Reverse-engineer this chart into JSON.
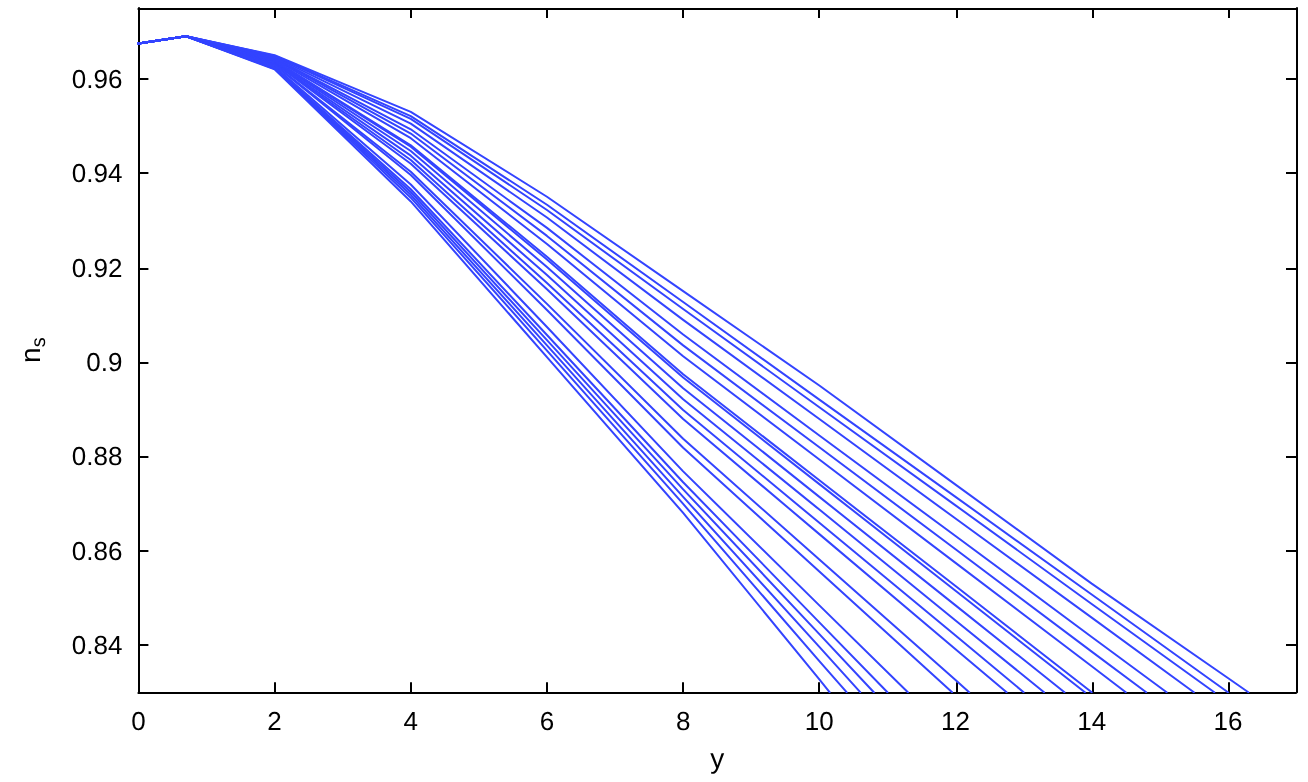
{
  "chart_data": {
    "type": "line",
    "xlabel": "y",
    "ylabel": "n$_{s}$",
    "xlim": [
      0,
      17
    ],
    "ylim": [
      0.83,
      0.975
    ],
    "xticks": [
      0,
      2,
      4,
      6,
      8,
      10,
      12,
      14,
      16
    ],
    "yticks": [
      0.84,
      0.86,
      0.88,
      0.9,
      0.92,
      0.94,
      0.96
    ],
    "marker": "none",
    "line_style": "solid",
    "series": [
      {
        "color": "#3344ff",
        "x": [
          0,
          0.7,
          2,
          4,
          6,
          8,
          10,
          10.15
        ],
        "values": [
          0.9675,
          0.969,
          0.962,
          0.934,
          0.901,
          0.868,
          0.8327,
          0.83
        ]
      },
      {
        "color": "#3344ff",
        "x": [
          0,
          0.7,
          2,
          4,
          6,
          8,
          10,
          10.4
        ],
        "values": [
          0.9675,
          0.969,
          0.9621,
          0.9348,
          0.9024,
          0.8699,
          0.8366,
          0.83
        ]
      },
      {
        "color": "#3344ff",
        "x": [
          0,
          0.7,
          2,
          4,
          6,
          8,
          10,
          10.6
        ],
        "values": [
          0.9675,
          0.969,
          0.9622,
          0.9354,
          0.9035,
          0.8714,
          0.8396,
          0.83
        ]
      },
      {
        "color": "#3344ff",
        "x": [
          0,
          0.7,
          2,
          4,
          6,
          8,
          10,
          10.8
        ],
        "values": [
          0.9675,
          0.969,
          0.9623,
          0.936,
          0.9046,
          0.873,
          0.8423,
          0.83
        ]
      },
      {
        "color": "#3344ff",
        "x": [
          0,
          0.7,
          2,
          4,
          6,
          8,
          10,
          11
        ],
        "values": [
          0.9675,
          0.969,
          0.9624,
          0.9366,
          0.9057,
          0.8745,
          0.8448,
          0.83
        ]
      },
      {
        "color": "#3344ff",
        "x": [
          0,
          0.7,
          2,
          4,
          6,
          8,
          10,
          11.3
        ],
        "values": [
          0.9675,
          0.969,
          0.9626,
          0.9376,
          0.9074,
          0.8768,
          0.8484,
          0.83
        ]
      },
      {
        "color": "#3344ff",
        "x": [
          0,
          0.7,
          2,
          4,
          6,
          8,
          10,
          11.95
        ],
        "values": [
          0.9675,
          0.969,
          0.9629,
          0.9396,
          0.911,
          0.8818,
          0.8556,
          0.83
        ]
      },
      {
        "color": "#3344ff",
        "x": [
          0,
          0.7,
          2,
          4,
          6,
          8,
          10,
          12,
          12.2
        ],
        "values": [
          0.9675,
          0.969,
          0.963,
          0.9403,
          0.9123,
          0.8837,
          0.8581,
          0.8326,
          0.83
        ]
      },
      {
        "color": "#3344ff",
        "x": [
          0,
          0.7,
          2,
          4,
          6,
          8,
          10,
          12,
          12.75
        ],
        "values": [
          0.9675,
          0.969,
          0.9633,
          0.942,
          0.9154,
          0.8879,
          0.8635,
          0.8391,
          0.83
        ]
      },
      {
        "color": "#3344ff",
        "x": [
          0,
          0.7,
          2,
          4,
          6,
          8,
          10,
          12,
          13
        ],
        "values": [
          0.9675,
          0.969,
          0.9634,
          0.9428,
          0.9167,
          0.8898,
          0.8659,
          0.842,
          0.83
        ]
      },
      {
        "color": "#3344ff",
        "x": [
          0,
          0.7,
          2,
          4,
          6,
          8,
          10,
          12,
          13.3
        ],
        "values": [
          0.9675,
          0.969,
          0.9635,
          0.9437,
          0.9184,
          0.8921,
          0.8687,
          0.8452,
          0.83
        ]
      },
      {
        "color": "#3344ff",
        "x": [
          0,
          0.7,
          2,
          4,
          6,
          8,
          10,
          12,
          13.6
        ],
        "values": [
          0.9675,
          0.969,
          0.9637,
          0.9447,
          0.9201,
          0.8944,
          0.8714,
          0.8484,
          0.83
        ]
      },
      {
        "color": "#3344ff",
        "x": [
          0,
          0.7,
          2,
          4,
          6,
          8,
          10,
          12,
          13.9
        ],
        "values": [
          0.9675,
          0.969,
          0.9638,
          0.9456,
          0.9217,
          0.8967,
          0.8741,
          0.8515,
          0.83
        ]
      },
      {
        "color": "#3344ff",
        "x": [
          0,
          0.7,
          2,
          4,
          6,
          8,
          10,
          12,
          14
        ],
        "values": [
          0.9675,
          0.969,
          0.9639,
          0.9459,
          0.9223,
          0.8974,
          0.8749,
          0.8525,
          0.83
        ]
      },
      {
        "color": "#3344ff",
        "x": [
          0,
          0.7,
          2,
          4,
          6,
          8,
          10,
          12,
          14,
          14.5
        ],
        "values": [
          0.9675,
          0.969,
          0.9641,
          0.9474,
          0.925,
          0.9012,
          0.8793,
          0.8574,
          0.8355,
          0.83
        ]
      },
      {
        "color": "#3344ff",
        "x": [
          0,
          0.7,
          2,
          4,
          6,
          8,
          10,
          12,
          14,
          14.8
        ],
        "values": [
          0.9675,
          0.969,
          0.9643,
          0.9484,
          0.9267,
          0.9035,
          0.8819,
          0.8603,
          0.8386,
          0.83
        ]
      },
      {
        "color": "#3344ff",
        "x": [
          0,
          0.7,
          2,
          4,
          6,
          8,
          10,
          12,
          14,
          15.1
        ],
        "values": [
          0.9675,
          0.969,
          0.9644,
          0.9493,
          0.9284,
          0.9058,
          0.8844,
          0.8631,
          0.8417,
          0.83
        ]
      },
      {
        "color": "#3344ff",
        "x": [
          0,
          0.7,
          2,
          4,
          6,
          8,
          10,
          12,
          14,
          15.5
        ],
        "values": [
          0.9675,
          0.969,
          0.9646,
          0.9505,
          0.9306,
          0.9089,
          0.8879,
          0.8668,
          0.8458,
          0.83
        ]
      },
      {
        "color": "#3344ff",
        "x": [
          0,
          0.7,
          2,
          4,
          6,
          8,
          10,
          12,
          14,
          15.8
        ],
        "values": [
          0.9675,
          0.969,
          0.9648,
          0.9515,
          0.9322,
          0.9112,
          0.8904,
          0.8696,
          0.8487,
          0.83
        ]
      },
      {
        "color": "#3344ff",
        "x": [
          0,
          0.7,
          2,
          4,
          6,
          8,
          10,
          12,
          14,
          16
        ],
        "values": [
          0.9675,
          0.969,
          0.9649,
          0.9521,
          0.9333,
          0.9127,
          0.892,
          0.8714,
          0.8507,
          0.83
        ]
      },
      {
        "color": "#3344ff",
        "x": [
          0,
          0.7,
          2,
          4,
          6,
          8,
          10,
          12,
          14,
          16,
          16.3
        ],
        "values": [
          0.9675,
          0.969,
          0.965,
          0.953,
          0.935,
          0.915,
          0.895,
          0.874,
          0.853,
          0.833,
          0.83
        ]
      }
    ]
  }
}
